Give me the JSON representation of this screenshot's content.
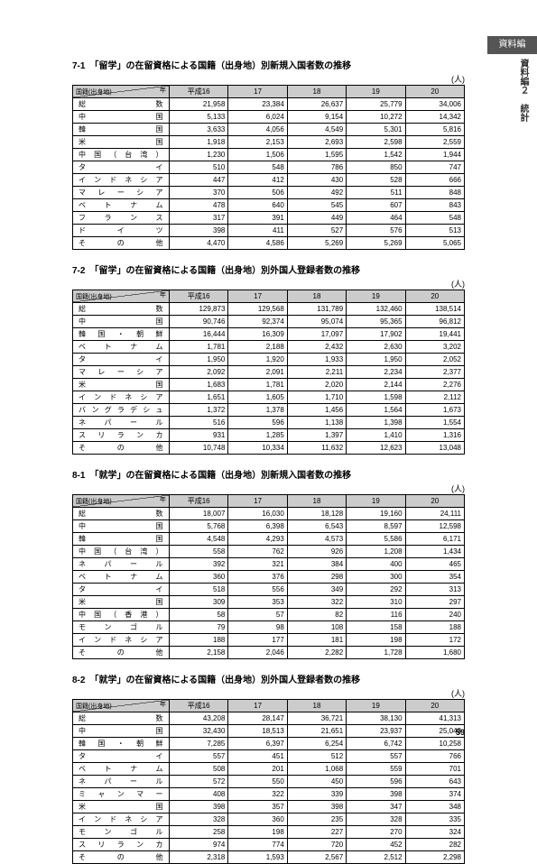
{
  "sidebar": {
    "tab": "資料編",
    "label": "資料編２　統計"
  },
  "pageNumber": "59",
  "tables": [
    {
      "title": "7-1　「留学」の在留資格による国籍（出身地）別新規入国者数の推移",
      "unit": "(人)",
      "headers": [
        "平成16",
        "17",
        "18",
        "19",
        "20"
      ],
      "corner": {
        "top": "年",
        "bot": "国籍(出身地)"
      },
      "rows": [
        {
          "l": "総数",
          "v": [
            "21,958",
            "23,384",
            "26,637",
            "25,779",
            "34,006"
          ]
        },
        {
          "l": "中国",
          "v": [
            "5,133",
            "6,024",
            "9,154",
            "10,272",
            "14,342"
          ]
        },
        {
          "l": "韓国",
          "v": [
            "3,633",
            "4,056",
            "4,549",
            "5,301",
            "5,816"
          ]
        },
        {
          "l": "米国",
          "v": [
            "1,918",
            "2,153",
            "2,693",
            "2,598",
            "2,559"
          ]
        },
        {
          "l": "中国（台湾）",
          "v": [
            "1,230",
            "1,506",
            "1,595",
            "1,542",
            "1,944"
          ]
        },
        {
          "l": "タイ",
          "v": [
            "510",
            "548",
            "786",
            "850",
            "747"
          ]
        },
        {
          "l": "インドネシア",
          "v": [
            "447",
            "412",
            "430",
            "528",
            "666"
          ]
        },
        {
          "l": "マレーシア",
          "v": [
            "370",
            "506",
            "492",
            "511",
            "848"
          ]
        },
        {
          "l": "ベトナム",
          "v": [
            "478",
            "640",
            "545",
            "607",
            "843"
          ]
        },
        {
          "l": "フランス",
          "v": [
            "317",
            "391",
            "449",
            "464",
            "548"
          ]
        },
        {
          "l": "ドイツ",
          "v": [
            "398",
            "411",
            "527",
            "576",
            "513"
          ]
        },
        {
          "l": "その他",
          "v": [
            "4,470",
            "4,586",
            "5,269",
            "5,269",
            "5,065"
          ]
        }
      ]
    },
    {
      "title": "7-2　「留学」の在留資格による国籍（出身地）別外国人登録者数の推移",
      "unit": "(人)",
      "headers": [
        "平成16",
        "17",
        "18",
        "19",
        "20"
      ],
      "corner": {
        "top": "年",
        "bot": "国籍(出身地)"
      },
      "rows": [
        {
          "l": "総数",
          "v": [
            "129,873",
            "129,568",
            "131,789",
            "132,460",
            "138,514"
          ]
        },
        {
          "l": "中国",
          "v": [
            "90,746",
            "92,374",
            "95,074",
            "95,365",
            "96,812"
          ]
        },
        {
          "l": "韓国・朝鮮",
          "v": [
            "16,444",
            "16,309",
            "17,097",
            "17,902",
            "19,441"
          ]
        },
        {
          "l": "ベトナム",
          "v": [
            "1,781",
            "2,188",
            "2,432",
            "2,630",
            "3,202"
          ]
        },
        {
          "l": "タイ",
          "v": [
            "1,950",
            "1,920",
            "1,933",
            "1,950",
            "2,052"
          ]
        },
        {
          "l": "マレーシア",
          "v": [
            "2,092",
            "2,091",
            "2,211",
            "2,234",
            "2,377"
          ]
        },
        {
          "l": "米国",
          "v": [
            "1,683",
            "1,781",
            "2,020",
            "2,144",
            "2,276"
          ]
        },
        {
          "l": "インドネシア",
          "v": [
            "1,651",
            "1,605",
            "1,710",
            "1,598",
            "2,112"
          ]
        },
        {
          "l": "バングラデシュ",
          "v": [
            "1,372",
            "1,378",
            "1,456",
            "1,564",
            "1,673"
          ]
        },
        {
          "l": "ネパール",
          "v": [
            "516",
            "596",
            "1,138",
            "1,398",
            "1,554"
          ]
        },
        {
          "l": "スリランカ",
          "v": [
            "931",
            "1,285",
            "1,397",
            "1,410",
            "1,316"
          ]
        },
        {
          "l": "その他",
          "v": [
            "10,748",
            "10,334",
            "11,632",
            "12,623",
            "13,048"
          ]
        }
      ]
    },
    {
      "title": "8-1　「就学」の在留資格による国籍（出身地）別新規入国者数の推移",
      "unit": "(人)",
      "headers": [
        "平成16",
        "17",
        "18",
        "19",
        "20"
      ],
      "corner": {
        "top": "年",
        "bot": "国籍(出身地)"
      },
      "rows": [
        {
          "l": "総数",
          "v": [
            "18,007",
            "16,030",
            "18,128",
            "19,160",
            "24,111"
          ]
        },
        {
          "l": "中国",
          "v": [
            "5,768",
            "6,398",
            "6,543",
            "8,597",
            "12,598"
          ]
        },
        {
          "l": "韓国",
          "v": [
            "4,548",
            "4,293",
            "4,573",
            "5,586",
            "6,171"
          ]
        },
        {
          "l": "中国（台湾）",
          "v": [
            "558",
            "762",
            "926",
            "1,208",
            "1,434"
          ]
        },
        {
          "l": "ネパール",
          "v": [
            "392",
            "321",
            "384",
            "400",
            "465"
          ]
        },
        {
          "l": "ベトナム",
          "v": [
            "360",
            "376",
            "298",
            "300",
            "354"
          ]
        },
        {
          "l": "タイ",
          "v": [
            "518",
            "556",
            "349",
            "292",
            "313"
          ]
        },
        {
          "l": "米国",
          "v": [
            "309",
            "353",
            "322",
            "310",
            "297"
          ]
        },
        {
          "l": "中国（香港）",
          "v": [
            "58",
            "57",
            "82",
            "116",
            "240"
          ]
        },
        {
          "l": "モンゴル",
          "v": [
            "79",
            "98",
            "108",
            "158",
            "188"
          ]
        },
        {
          "l": "インドネシア",
          "v": [
            "188",
            "177",
            "181",
            "198",
            "172"
          ]
        },
        {
          "l": "その他",
          "v": [
            "2,158",
            "2,046",
            "2,282",
            "1,728",
            "1,680"
          ]
        }
      ]
    },
    {
      "title": "8-2　「就学」の在留資格による国籍（出身地）別外国人登録者数の推移",
      "unit": "(人)",
      "headers": [
        "平成16",
        "17",
        "18",
        "19",
        "20"
      ],
      "corner": {
        "top": "年",
        "bot": "国籍(出身地)"
      },
      "rows": [
        {
          "l": "総数",
          "v": [
            "43,208",
            "28,147",
            "36,721",
            "38,130",
            "41,313"
          ]
        },
        {
          "l": "中国",
          "v": [
            "32,430",
            "18,513",
            "21,651",
            "23,937",
            "25,043"
          ]
        },
        {
          "l": "韓国・朝鮮",
          "v": [
            "7,285",
            "6,397",
            "6,254",
            "6,742",
            "10,258"
          ]
        },
        {
          "l": "タイ",
          "v": [
            "557",
            "451",
            "512",
            "557",
            "766"
          ]
        },
        {
          "l": "ベトナム",
          "v": [
            "508",
            "201",
            "1,068",
            "559",
            "701"
          ]
        },
        {
          "l": "ネパール",
          "v": [
            "572",
            "550",
            "450",
            "596",
            "643"
          ]
        },
        {
          "l": "ミャンマー",
          "v": [
            "408",
            "322",
            "339",
            "398",
            "374"
          ]
        },
        {
          "l": "米国",
          "v": [
            "398",
            "357",
            "398",
            "347",
            "348"
          ]
        },
        {
          "l": "インドネシア",
          "v": [
            "328",
            "360",
            "235",
            "328",
            "335"
          ]
        },
        {
          "l": "モンゴル",
          "v": [
            "258",
            "198",
            "227",
            "270",
            "324"
          ]
        },
        {
          "l": "スリランカ",
          "v": [
            "974",
            "774",
            "720",
            "452",
            "282"
          ]
        },
        {
          "l": "その他",
          "v": [
            "2,318",
            "1,593",
            "2,567",
            "2,512",
            "2,298"
          ]
        }
      ]
    }
  ]
}
